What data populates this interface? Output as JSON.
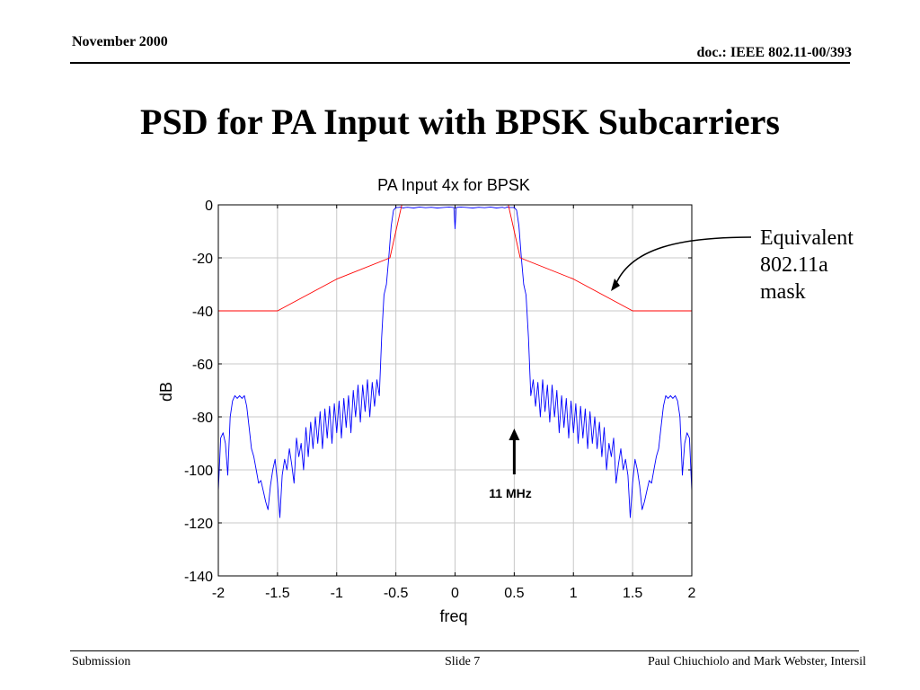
{
  "header": {
    "date": "November 2000",
    "doc": "doc.: IEEE 802.11-00/393"
  },
  "slide_title": "PSD for PA Input with BPSK Subcarriers",
  "annotations": {
    "callout_lines": [
      "Equivalent",
      "802.11a",
      "mask"
    ],
    "marker_label": "11 MHz",
    "marker_x": 0.5
  },
  "footer": {
    "left": "Submission",
    "center": "Slide 7",
    "right": "Paul Chiuchiolo and Mark Webster, Intersil"
  },
  "colors": {
    "psd": "#0000ff",
    "mask": "#ff0000",
    "grid": "#c8c8c8"
  },
  "chart_data": {
    "type": "line",
    "title": "PA Input 4x for BPSK",
    "xlabel": "freq",
    "ylabel": "dB",
    "xlim": [
      -2,
      2
    ],
    "ylim": [
      -140,
      0
    ],
    "xticks": [
      -2,
      -1.5,
      -1,
      -0.5,
      0,
      0.5,
      1,
      1.5,
      2
    ],
    "yticks": [
      0,
      -20,
      -40,
      -60,
      -80,
      -100,
      -120,
      -140
    ],
    "xtick_labels": [
      "-2",
      "-1.5",
      "-1",
      "-0.5",
      "0",
      "0.5",
      "1",
      "1.5",
      "2"
    ],
    "ytick_labels": [
      "0",
      "-20",
      "-40",
      "-60",
      "-80",
      "-100",
      "-120",
      "-140"
    ],
    "grid": true,
    "series": [
      {
        "role": "psd",
        "x": [
          -2,
          -1.98,
          -1.96,
          -1.94,
          -1.92,
          -1.9,
          -1.88,
          -1.86,
          -1.84,
          -1.82,
          -1.8,
          -1.78,
          -1.76,
          -1.74,
          -1.72,
          -1.7,
          -1.68,
          -1.66,
          -1.64,
          -1.62,
          -1.6,
          -1.58,
          -1.56,
          -1.54,
          -1.52,
          -1.5,
          -1.48,
          -1.46,
          -1.44,
          -1.42,
          -1.4,
          -1.38,
          -1.36,
          -1.34,
          -1.32,
          -1.3,
          -1.28,
          -1.26,
          -1.24,
          -1.22,
          -1.2,
          -1.18,
          -1.16,
          -1.14,
          -1.12,
          -1.1,
          -1.08,
          -1.06,
          -1.04,
          -1.02,
          -1,
          -0.98,
          -0.96,
          -0.94,
          -0.92,
          -0.9,
          -0.88,
          -0.86,
          -0.84,
          -0.82,
          -0.8,
          -0.78,
          -0.76,
          -0.74,
          -0.72,
          -0.7,
          -0.68,
          -0.66,
          -0.64,
          -0.62,
          -0.6,
          -0.58,
          -0.56,
          -0.54,
          -0.52,
          -0.5,
          -0.48,
          -0.46,
          -0.44,
          -0.42,
          -0.4,
          -0.35,
          -0.3,
          -0.25,
          -0.2,
          -0.15,
          -0.1,
          -0.05,
          -0.01,
          0,
          0.01,
          0.05,
          0.1,
          0.15,
          0.2,
          0.25,
          0.3,
          0.35,
          0.4,
          0.42,
          0.44,
          0.46,
          0.48,
          0.5,
          0.52,
          0.54,
          0.56,
          0.58,
          0.6,
          0.62,
          0.64,
          0.66,
          0.68,
          0.7,
          0.72,
          0.74,
          0.76,
          0.78,
          0.8,
          0.82,
          0.84,
          0.86,
          0.88,
          0.9,
          0.92,
          0.94,
          0.96,
          0.98,
          1,
          1.02,
          1.04,
          1.06,
          1.08,
          1.1,
          1.12,
          1.14,
          1.16,
          1.18,
          1.2,
          1.22,
          1.24,
          1.26,
          1.28,
          1.3,
          1.32,
          1.34,
          1.36,
          1.38,
          1.4,
          1.42,
          1.44,
          1.46,
          1.48,
          1.5,
          1.52,
          1.54,
          1.56,
          1.58,
          1.6,
          1.62,
          1.64,
          1.66,
          1.68,
          1.7,
          1.72,
          1.74,
          1.76,
          1.78,
          1.8,
          1.82,
          1.84,
          1.86,
          1.88,
          1.9,
          1.92,
          1.94,
          1.96,
          1.98,
          2
        ],
        "y": [
          -108,
          -88,
          -86,
          -90,
          -102,
          -80,
          -74,
          -72,
          -73,
          -72,
          -73,
          -72,
          -76,
          -84,
          -92,
          -95,
          -100,
          -105,
          -104,
          -108,
          -112,
          -115,
          -106,
          -100,
          -96,
          -105,
          -118,
          -102,
          -96,
          -100,
          -92,
          -98,
          -105,
          -88,
          -95,
          -90,
          -100,
          -84,
          -95,
          -82,
          -92,
          -80,
          -90,
          -78,
          -92,
          -77,
          -88,
          -76,
          -90,
          -75,
          -86,
          -74,
          -88,
          -73,
          -84,
          -72,
          -86,
          -70,
          -80,
          -68,
          -82,
          -68,
          -78,
          -66,
          -80,
          -67,
          -76,
          -66,
          -72,
          -50,
          -34,
          -30,
          -20,
          -8,
          -2,
          -1,
          -1,
          -0.8,
          -1.2,
          -1,
          -0.9,
          -1.2,
          -0.8,
          -1.1,
          -0.9,
          -1.2,
          -1,
          -0.8,
          -1,
          -9,
          -1,
          -0.8,
          -1,
          -1.2,
          -0.9,
          -1.1,
          -0.8,
          -1.2,
          -0.9,
          -1.2,
          -0.8,
          -1,
          -1,
          -1,
          -2,
          -8,
          -20,
          -30,
          -34,
          -50,
          -72,
          -66,
          -76,
          -67,
          -80,
          -66,
          -78,
          -68,
          -82,
          -68,
          -80,
          -70,
          -86,
          -72,
          -84,
          -73,
          -88,
          -74,
          -86,
          -75,
          -90,
          -76,
          -88,
          -77,
          -92,
          -78,
          -90,
          -80,
          -92,
          -82,
          -95,
          -84,
          -100,
          -90,
          -95,
          -88,
          -105,
          -98,
          -92,
          -100,
          -96,
          -102,
          -118,
          -105,
          -96,
          -100,
          -106,
          -115,
          -112,
          -108,
          -104,
          -105,
          -100,
          -95,
          -92,
          -84,
          -76,
          -72,
          -73,
          -72,
          -73,
          -72,
          -74,
          -80,
          -102,
          -90,
          -86,
          -88,
          -108
        ]
      },
      {
        "role": "mask",
        "x": [
          -2,
          -1.5,
          -1,
          -0.55,
          -0.5,
          -0.45,
          0.45,
          0.5,
          0.55,
          1,
          1.5,
          2
        ],
        "y": [
          -40,
          -40,
          -28,
          -20,
          -10,
          0,
          0,
          -10,
          -20,
          -28,
          -40,
          -40
        ]
      }
    ]
  }
}
